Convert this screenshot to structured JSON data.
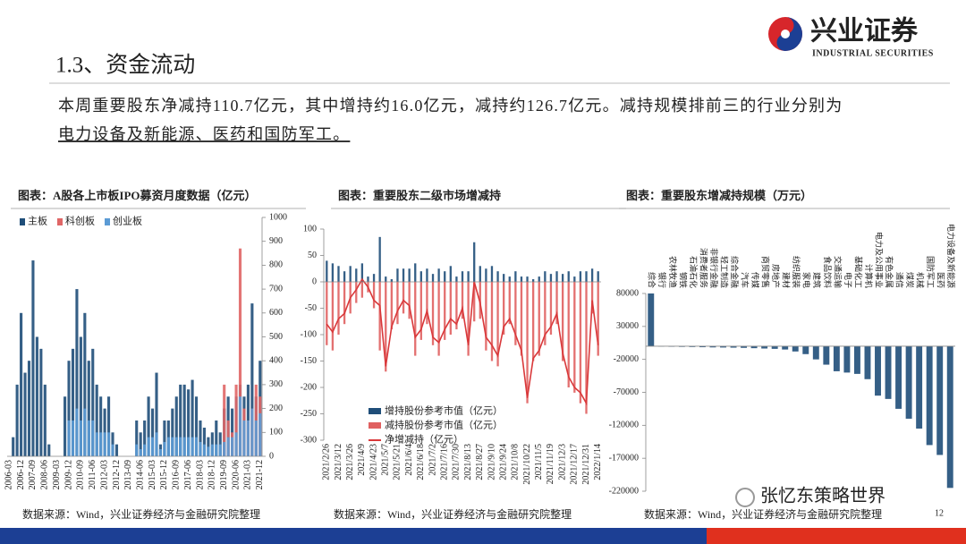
{
  "header": {
    "title": "1.3、资金流动",
    "logo_cn": "兴业证券",
    "logo_en": "INDUSTRIAL SECURITIES"
  },
  "summary": [
    "本周重要股东净减持110.7亿元，其中增持约16.0亿元，减持约126.7亿元。减持规模排前三的行业分别为",
    "电力设备及新能源、医药和国防军工。"
  ],
  "footer": {
    "page": "12",
    "watermark": "张忆东策略世界"
  },
  "chart_data": [
    {
      "type": "bar",
      "title": "图表：A股各上市板IPO募资月度数据（亿元）",
      "source": "数据来源：Wind，兴业证券经济与金融研究院整理",
      "categories": [
        "2006-03",
        null,
        null,
        "2006-12",
        null,
        null,
        "2007-09",
        null,
        null,
        "2008-06",
        null,
        null,
        "2009-03",
        null,
        null,
        "2009-12",
        null,
        null,
        "2010-09",
        null,
        null,
        "2011-06",
        null,
        null,
        "2012-03",
        null,
        null,
        "2012-12",
        null,
        null,
        "2013-09",
        null,
        null,
        "2014-06",
        null,
        null,
        "2015-03",
        null,
        null,
        "2015-12",
        null,
        null,
        "2016-09",
        null,
        null,
        "2017-06",
        null,
        null,
        "2018-03",
        null,
        null,
        "2018-12",
        null,
        null,
        "2019-09",
        null,
        null,
        "2020-06",
        null,
        null,
        "2021-03",
        null,
        null,
        "2021-12"
      ],
      "series": [
        {
          "name": "主板",
          "color": "#1f4e79",
          "values": [
            0,
            80,
            300,
            600,
            350,
            400,
            820,
            500,
            450,
            300,
            50,
            0,
            0,
            0,
            250,
            400,
            450,
            700,
            500,
            600,
            400,
            450,
            300,
            250,
            200,
            250,
            100,
            50,
            0,
            0,
            0,
            0,
            150,
            100,
            150,
            250,
            200,
            350,
            50,
            150,
            150,
            200,
            250,
            300,
            300,
            280,
            320,
            250,
            150,
            120,
            80,
            100,
            150,
            100,
            200,
            250,
            200,
            250,
            300,
            250,
            300,
            640,
            250,
            400
          ]
        },
        {
          "name": "科创板",
          "color": "#e06666",
          "values": [
            0,
            0,
            0,
            0,
            0,
            0,
            0,
            0,
            0,
            0,
            0,
            0,
            0,
            0,
            0,
            0,
            0,
            0,
            0,
            0,
            0,
            0,
            0,
            0,
            0,
            0,
            0,
            0,
            0,
            0,
            0,
            0,
            0,
            0,
            0,
            0,
            0,
            0,
            0,
            0,
            0,
            0,
            0,
            0,
            0,
            0,
            0,
            0,
            0,
            0,
            0,
            0,
            0,
            0,
            300,
            150,
            100,
            300,
            870,
            200,
            150,
            200,
            300,
            250
          ]
        },
        {
          "name": "创业板",
          "color": "#5b9bd5",
          "values": [
            0,
            0,
            0,
            0,
            0,
            0,
            0,
            0,
            0,
            0,
            0,
            0,
            0,
            0,
            0,
            150,
            150,
            200,
            150,
            200,
            150,
            150,
            100,
            100,
            100,
            100,
            50,
            0,
            0,
            0,
            0,
            0,
            50,
            30,
            50,
            80,
            80,
            100,
            30,
            60,
            80,
            80,
            80,
            80,
            80,
            80,
            80,
            80,
            60,
            50,
            40,
            50,
            50,
            50,
            60,
            80,
            80,
            100,
            250,
            150,
            150,
            200,
            150,
            180
          ]
        }
      ],
      "ylim": [
        0,
        1000
      ],
      "yticks": [
        0,
        100,
        200,
        300,
        400,
        500,
        600,
        700,
        800,
        900,
        1000
      ]
    },
    {
      "type": "bar",
      "title": "图表：重要股东二级市场增减持",
      "source": "数据来源：Wind，兴业证券经济与金融研究院整理",
      "categories": [
        "2021/2/26",
        null,
        "2021/3/12",
        null,
        "2021/3/26",
        null,
        "2021/4/9",
        null,
        "2021/4/23",
        null,
        "2021/5/7",
        null,
        "2021/5/21",
        null,
        "2021/6/4",
        null,
        "2021/6/18",
        null,
        "2021/7/2",
        null,
        "2021/7/16",
        null,
        "2021/7/30",
        null,
        "2021/8/13",
        null,
        "2021/8/27",
        null,
        "2021/9/10",
        null,
        "2021/9/24",
        null,
        "2021/10/8",
        null,
        "2021/10/22",
        null,
        "2021/11/5",
        null,
        "2021/11/19",
        null,
        "2021/12/3",
        null,
        "2021/12/17",
        null,
        "2021/12/31",
        null,
        "2022/1/14"
      ],
      "series": [
        {
          "name": "增持股份参考市值（亿元）",
          "color": "#1f4e79",
          "values": [
            40,
            35,
            30,
            20,
            30,
            25,
            35,
            10,
            15,
            85,
            10,
            5,
            25,
            25,
            25,
            35,
            20,
            25,
            15,
            25,
            20,
            30,
            10,
            20,
            20,
            75,
            30,
            25,
            30,
            20,
            15,
            10,
            20,
            10,
            10,
            5,
            10,
            20,
            15,
            20,
            15,
            20,
            10,
            20,
            20,
            25,
            20
          ]
        },
        {
          "name": "减持股份参考市值（亿元）",
          "color": "#e06060",
          "values": [
            -120,
            -130,
            -100,
            -80,
            -60,
            -40,
            -30,
            -20,
            -50,
            -130,
            -170,
            -90,
            -80,
            -60,
            -70,
            -140,
            -110,
            -80,
            -120,
            -140,
            -110,
            -100,
            -90,
            -70,
            -140,
            -75,
            -70,
            -130,
            -150,
            -160,
            -100,
            -80,
            -120,
            -140,
            -230,
            -150,
            -140,
            -120,
            -100,
            -80,
            -150,
            -200,
            -210,
            -230,
            -250,
            -60,
            -140
          ]
        },
        {
          "name": "净增减持（亿元）",
          "type": "line",
          "color": "#d9383a",
          "values": [
            -80,
            -95,
            -70,
            -60,
            -30,
            -15,
            5,
            -10,
            -35,
            -45,
            -160,
            -85,
            -55,
            -35,
            -45,
            -105,
            -90,
            -55,
            -105,
            -115,
            -90,
            -70,
            -80,
            -50,
            -120,
            0,
            -40,
            -105,
            -120,
            -140,
            -85,
            -70,
            -100,
            -130,
            -220,
            -145,
            -130,
            -100,
            -85,
            -60,
            -135,
            -180,
            -200,
            -210,
            -230,
            -35,
            -120
          ]
        }
      ],
      "ylim": [
        -300,
        100
      ],
      "yticks": [
        100,
        50,
        0,
        -50,
        -100,
        -150,
        -200,
        -250,
        -300
      ]
    },
    {
      "type": "bar",
      "title": "图表：重要股东增减持规模（万元）",
      "source": "数据来源：Wind，兴业证券经济与金融研究院整理",
      "categories": [
        "综合",
        "银行",
        "农林牧渔",
        "钢铁",
        "石油石化",
        "消费者服务",
        "非银行金融",
        "轻工制造",
        "综合金融",
        "汽车",
        "传媒",
        "商贸零售",
        "房地产",
        "建材",
        "纺织服装",
        "家电",
        "建筑",
        "食品饮料",
        "交通运输",
        "电子",
        "基础化工",
        "计算机",
        "电力及公用事业",
        "有色金属",
        "通信",
        "煤炭",
        "机械",
        "国防军工",
        "医药",
        "电力设备及新能源"
      ],
      "series": [
        {
          "color": "#1f4e79",
          "values": [
            80000,
            -500,
            -800,
            -1000,
            -1200,
            -1500,
            -1800,
            -2000,
            -2200,
            -2500,
            -3000,
            -3500,
            -4000,
            -5000,
            -8000,
            -12000,
            -20000,
            -28000,
            -38000,
            -40000,
            -42000,
            -50000,
            -75000,
            -80000,
            -95000,
            -110000,
            -125000,
            -150000,
            -165000,
            -215000
          ]
        }
      ],
      "ylim": [
        -220000,
        80000
      ],
      "yticks": [
        80000,
        30000,
        -20000,
        -70000,
        -120000,
        -170000,
        -220000
      ]
    }
  ]
}
